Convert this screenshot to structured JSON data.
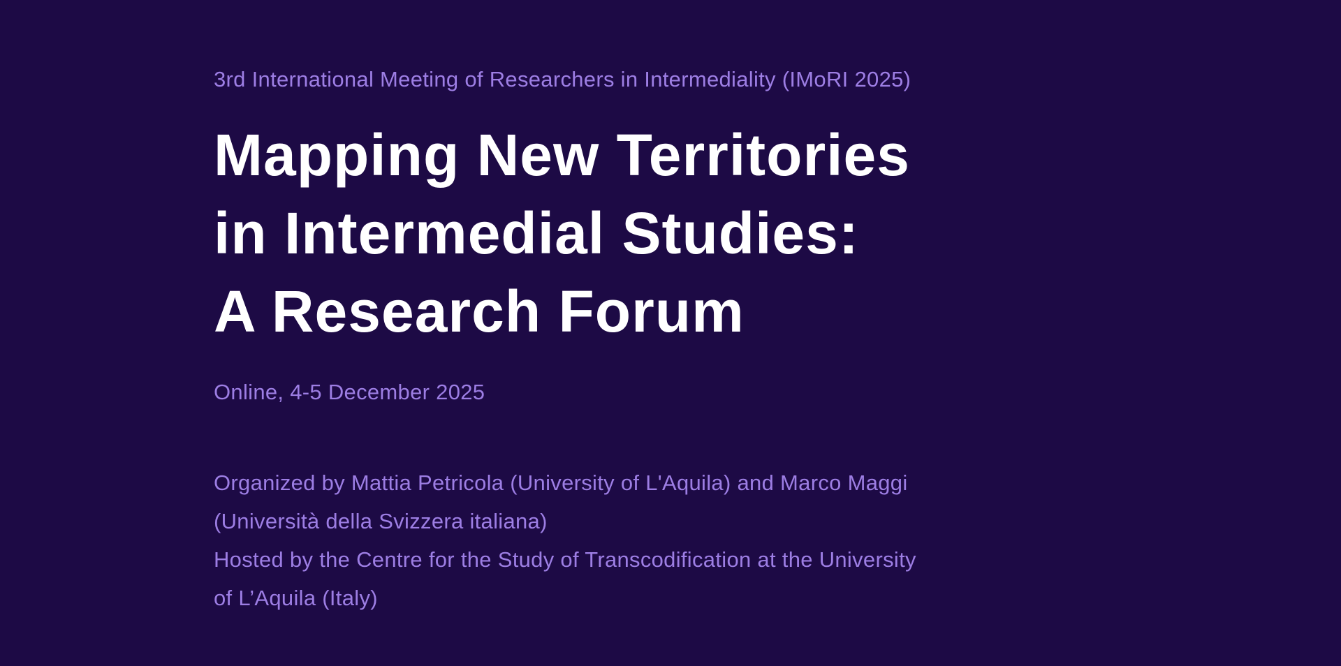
{
  "page": {
    "background_color": "#1d0a45",
    "accent_text_color": "#9d7ee4",
    "title_color": "#ffffff"
  },
  "hero": {
    "eyebrow": "3rd International Meeting of Researchers in Intermediality (IMoRI 2025)",
    "title_lines": [
      "Mapping New Territories",
      "in Intermedial Studies:",
      "A Research Forum"
    ],
    "event_mode_and_date": "Online, 4-5 December 2025",
    "organizers_lines": [
      "Organized by Mattia Petricola (University of L'Aquila) and Marco Maggi",
      "(Università della Svizzera italiana)",
      "Hosted by the Centre for the Study of Transcodification at the University",
      "of L’Aquila (Italy)"
    ]
  }
}
